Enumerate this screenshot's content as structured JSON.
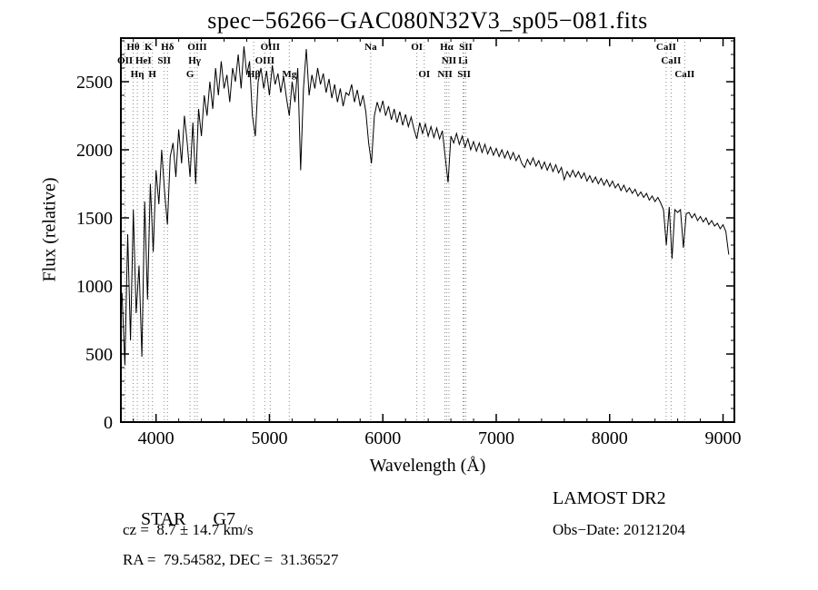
{
  "title": "spec−56266−GAC080N32V3_sp05−081.fits",
  "footer": {
    "classification": "STAR",
    "subclass": "G7",
    "cz_line": "cz =  8.7 ± 14.7 km/s",
    "radec_line": "RA =  79.54582, DEC =  31.36527",
    "survey": "LAMOST DR2",
    "obs_date_line": "Obs−Date: 20121204"
  },
  "chart_data": {
    "type": "line",
    "title": "spec−56266−GAC080N32V3_sp05−081.fits",
    "xlabel": "Wavelength (Å)",
    "ylabel": "Flux (relative)",
    "xlim": [
      3690,
      9100
    ],
    "ylim": [
      0,
      2820
    ],
    "x_ticks": [
      4000,
      5000,
      6000,
      7000,
      8000,
      9000
    ],
    "y_ticks": [
      0,
      500,
      1000,
      1500,
      2000,
      2500
    ],
    "x_minor_step": 200,
    "y_minor_step": 100,
    "grid": false,
    "legend": false,
    "line_color": "#000000",
    "marker_line_color": "#888888",
    "x_start": 3700,
    "x_step": 25,
    "flux": [
      950,
      420,
      1380,
      600,
      1560,
      800,
      1150,
      480,
      1620,
      900,
      1750,
      1250,
      1850,
      1600,
      2000,
      1700,
      1450,
      1950,
      2050,
      1800,
      2150,
      1900,
      2250,
      2050,
      1800,
      2200,
      1750,
      2300,
      2100,
      2400,
      2250,
      2500,
      2300,
      2600,
      2400,
      2650,
      2450,
      2550,
      2350,
      2600,
      2500,
      2700,
      2450,
      2760,
      2550,
      2650,
      2250,
      2100,
      2500,
      2600,
      2450,
      2580,
      2400,
      2620,
      2480,
      2560,
      2420,
      2540,
      2380,
      2250,
      2500,
      2350,
      2600,
      1850,
      2450,
      2740,
      2400,
      2550,
      2450,
      2600,
      2480,
      2560,
      2420,
      2520,
      2380,
      2480,
      2350,
      2450,
      2320,
      2420,
      2400,
      2480,
      2350,
      2440,
      2320,
      2400,
      2280,
      2050,
      1900,
      2250,
      2350,
      2280,
      2360,
      2250,
      2320,
      2220,
      2300,
      2200,
      2280,
      2180,
      2260,
      2170,
      2240,
      2150,
      2080,
      2200,
      2120,
      2190,
      2100,
      2170,
      2090,
      2160,
      2080,
      2140,
      1950,
      1760,
      2100,
      2050,
      2120,
      2040,
      2100,
      2020,
      2080,
      2000,
      2060,
      1990,
      2050,
      1980,
      2040,
      1970,
      2020,
      1960,
      2010,
      1950,
      2000,
      1940,
      1990,
      1930,
      1980,
      1920,
      1960,
      1900,
      1870,
      1930,
      1890,
      1940,
      1880,
      1920,
      1860,
      1910,
      1850,
      1900,
      1840,
      1890,
      1830,
      1870,
      1780,
      1840,
      1800,
      1850,
      1800,
      1840,
      1790,
      1830,
      1770,
      1810,
      1760,
      1800,
      1750,
      1790,
      1740,
      1780,
      1730,
      1770,
      1720,
      1750,
      1700,
      1740,
      1690,
      1720,
      1680,
      1710,
      1660,
      1690,
      1650,
      1680,
      1630,
      1660,
      1620,
      1650,
      1610,
      1560,
      1300,
      1580,
      1200,
      1560,
      1540,
      1560,
      1280,
      1530,
      1540,
      1500,
      1530,
      1480,
      1510,
      1470,
      1500,
      1450,
      1480,
      1440,
      1460,
      1420,
      1450,
      1400,
      1230
    ],
    "spectral_lines": [
      {
        "label": "Hθ",
        "wavelength": 3798,
        "row": 0
      },
      {
        "label": "K",
        "wavelength": 3933,
        "row": 0
      },
      {
        "label": "Hδ",
        "wavelength": 4101,
        "row": 0
      },
      {
        "label": "OIII",
        "wavelength": 4363,
        "row": 0
      },
      {
        "label": "OIII",
        "wavelength": 5007,
        "row": 0
      },
      {
        "label": "Na",
        "wavelength": 5893,
        "row": 0
      },
      {
        "label": "OI",
        "wavelength": 6300,
        "row": 0
      },
      {
        "label": "Hα",
        "wavelength": 6563,
        "row": 0
      },
      {
        "label": "SII",
        "wavelength": 6731,
        "row": 0
      },
      {
        "label": "CaII",
        "wavelength": 8498,
        "row": 0
      },
      {
        "label": "OII",
        "wavelength": 3727,
        "row": 1
      },
      {
        "label": "HeI",
        "wavelength": 3889,
        "row": 1
      },
      {
        "label": "SII",
        "wavelength": 4072,
        "row": 1
      },
      {
        "label": "Hγ",
        "wavelength": 4340,
        "row": 1
      },
      {
        "label": "OIII",
        "wavelength": 4959,
        "row": 1
      },
      {
        "label": "NII",
        "wavelength": 6583,
        "row": 1
      },
      {
        "label": "Li",
        "wavelength": 6707,
        "row": 1
      },
      {
        "label": "CaII",
        "wavelength": 8542,
        "row": 1
      },
      {
        "label": "Hη",
        "wavelength": 3835,
        "row": 2
      },
      {
        "label": "H",
        "wavelength": 3968,
        "row": 2
      },
      {
        "label": "G",
        "wavelength": 4300,
        "row": 2
      },
      {
        "label": "Hβ",
        "wavelength": 4861,
        "row": 2
      },
      {
        "label": "Mg",
        "wavelength": 5175,
        "row": 2
      },
      {
        "label": "OI",
        "wavelength": 6365,
        "row": 2
      },
      {
        "label": "NII",
        "wavelength": 6548,
        "row": 2
      },
      {
        "label": "SII",
        "wavelength": 6716,
        "row": 2
      },
      {
        "label": "CaII",
        "wavelength": 8662,
        "row": 2
      }
    ]
  }
}
